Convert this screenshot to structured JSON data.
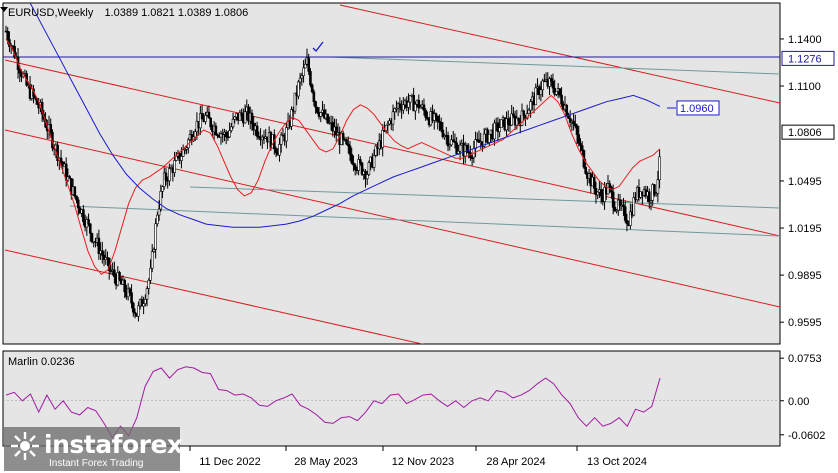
{
  "chart_title": {
    "symbol_timeframe": "EURUSD,Weekly",
    "ohlc": "1.0389 1.0821 1.0389 1.0806"
  },
  "indicator_title": "Marlin 0.0236",
  "logo": {
    "name": "instaforex",
    "tagline": "Instant Forex Trading"
  },
  "colors": {
    "background": "#ffffff",
    "plot_background": "#e5e5e5",
    "candle": "#000000",
    "ma_red": "#e81e1e",
    "ma_blue": "#1b1bcc",
    "channel_red": "#d61f1f",
    "channel_gray": "#6f9a9a",
    "resistance_blue": "#1b1b99",
    "oscillator": "#a21aa2"
  },
  "chart_data": [
    {
      "type": "candlestick",
      "x_axis_labels": [
        "11 Dec 2022",
        "28 May 2023",
        "12 Nov 2023",
        "28 Apr 2024",
        "13 Oct 2024"
      ],
      "y_ticks": [
        "1.1400",
        "1.1100",
        "1.0495",
        "1.0195",
        "0.9895",
        "0.9595"
      ],
      "ylim": [
        0.9456,
        1.1629
      ],
      "price_labels": [
        {
          "value": 1.1276,
          "text": "1.1276"
        },
        {
          "value": 1.096,
          "text": "1.0960"
        },
        {
          "value": 1.0806,
          "text": "1.0806"
        }
      ],
      "ma_red_values": [
        1.14,
        1.133,
        1.122,
        1.114,
        1.107,
        1.098,
        1.085,
        1.072,
        1.06,
        1.048,
        1.035,
        1.02,
        1.005,
        0.995,
        0.99,
        0.993,
        1.005,
        1.02,
        1.035,
        1.045,
        1.05,
        1.052,
        1.055,
        1.058,
        1.062,
        1.066,
        1.07,
        1.074,
        1.078,
        1.082,
        1.08,
        1.072,
        1.062,
        1.052,
        1.044,
        1.04,
        1.042,
        1.05,
        1.062,
        1.072,
        1.08,
        1.086,
        1.09,
        1.088,
        1.082,
        1.076,
        1.07,
        1.068,
        1.07,
        1.078,
        1.088,
        1.095,
        1.098,
        1.096,
        1.092,
        1.086,
        1.08,
        1.075,
        1.072,
        1.07,
        1.072,
        1.074,
        1.072,
        1.07,
        1.068,
        1.066,
        1.064,
        1.064,
        1.066,
        1.068,
        1.07,
        1.072,
        1.074,
        1.076,
        1.08,
        1.084,
        1.088,
        1.092,
        1.096,
        1.1,
        1.104,
        1.1,
        1.092,
        1.08,
        1.07,
        1.062,
        1.056,
        1.05,
        1.046,
        1.044,
        1.046,
        1.052,
        1.058,
        1.062,
        1.064,
        1.066,
        1.07
      ],
      "ma_blue_values": [
        1.19,
        1.175,
        1.16,
        1.144,
        1.128,
        1.112,
        1.096,
        1.08,
        1.066,
        1.054,
        1.045,
        1.038,
        1.032,
        1.028,
        1.025,
        1.022,
        1.021,
        1.02,
        1.02,
        1.02,
        1.021,
        1.022,
        1.024,
        1.027,
        1.031,
        1.035,
        1.04,
        1.044,
        1.048,
        1.052,
        1.055,
        1.058,
        1.061,
        1.064,
        1.067,
        1.07,
        1.073,
        1.076,
        1.079,
        1.082,
        1.085,
        1.088,
        1.091,
        1.094,
        1.097,
        1.1,
        1.102,
        1.104,
        1.101,
        1.097
      ],
      "oscillator_values": [
        0.01,
        0.015,
        0.0,
        0.012,
        -0.02,
        0.01,
        -0.015,
        0.0,
        -0.02,
        -0.025,
        -0.012,
        -0.018,
        -0.04,
        -0.065,
        -0.045,
        -0.062,
        -0.03,
        0.025,
        0.052,
        0.058,
        0.04,
        0.055,
        0.06,
        0.058,
        0.05,
        0.048,
        0.02,
        0.018,
        0.01,
        0.012,
        0.005,
        -0.008,
        -0.01,
        0.0,
        0.005,
        0.012,
        -0.008,
        -0.015,
        -0.025,
        -0.038,
        -0.04,
        -0.03,
        -0.028,
        -0.035,
        -0.02,
        0.0,
        -0.005,
        0.01,
        0.012,
        -0.005,
        0.002,
        0.01,
        0.012,
        0.0,
        -0.01,
        0.0,
        -0.012,
        0.0,
        0.005,
        0.0,
        0.018,
        0.015,
        0.005,
        0.01,
        0.018,
        0.03,
        0.04,
        0.03,
        0.01,
        -0.005,
        -0.03,
        -0.045,
        -0.03,
        -0.045,
        -0.04,
        -0.03,
        -0.045,
        -0.015,
        -0.02,
        -0.01,
        0.04
      ]
    },
    {
      "type": "line",
      "y_ticks": [
        "0.0753",
        "0.00",
        "-0.0602"
      ],
      "ylim": [
        -0.08,
        0.088
      ]
    }
  ]
}
